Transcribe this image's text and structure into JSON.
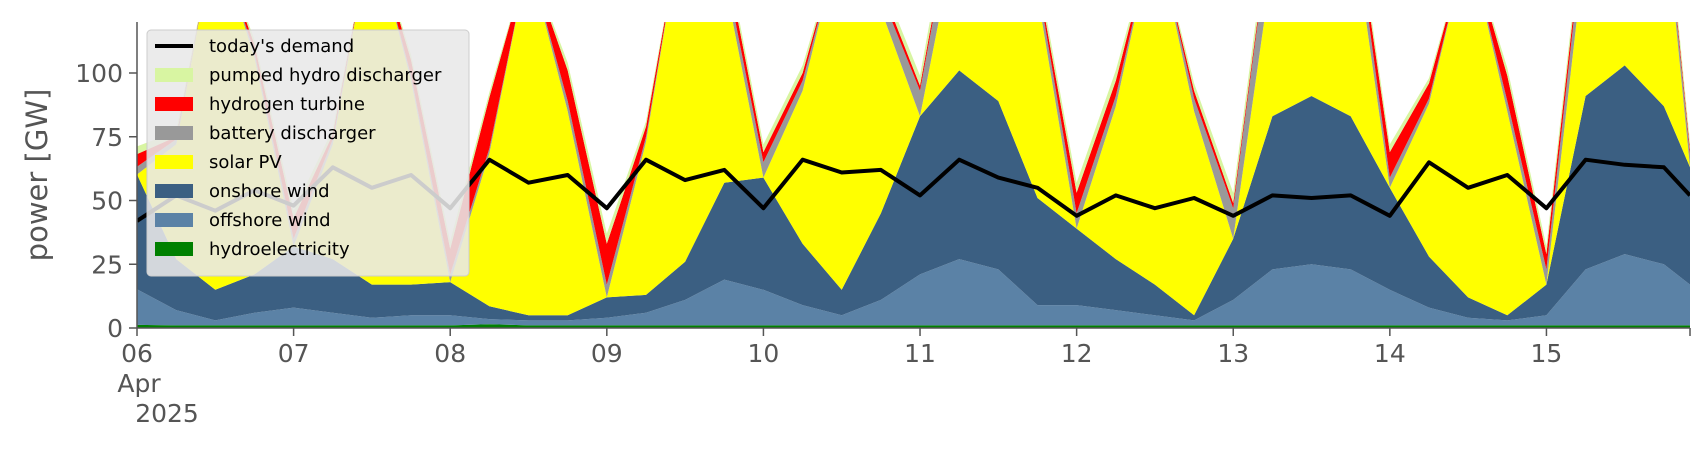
{
  "chart_data": {
    "type": "area",
    "ylabel": "power [GW]",
    "xlim": [
      "2025-04-06T00:00",
      "2025-04-15T22:00"
    ],
    "ylim": [
      0,
      120
    ],
    "yticks": [
      0,
      25,
      50,
      75,
      100
    ],
    "xticks": [
      {
        "label": "06",
        "sublabel": "Apr",
        "sublabel2": "2025"
      },
      {
        "label": "07"
      },
      {
        "label": "08"
      },
      {
        "label": "09"
      },
      {
        "label": "10"
      },
      {
        "label": "11"
      },
      {
        "label": "12"
      },
      {
        "label": "13"
      },
      {
        "label": "14"
      },
      {
        "label": "15"
      }
    ],
    "grid": false,
    "legend_position": "top-left",
    "x": [
      "2025-04-06T00:00",
      "2025-04-06T06:00",
      "2025-04-06T12:00",
      "2025-04-06T18:00",
      "2025-04-07T00:00",
      "2025-04-07T06:00",
      "2025-04-07T12:00",
      "2025-04-07T18:00",
      "2025-04-08T00:00",
      "2025-04-08T06:00",
      "2025-04-08T12:00",
      "2025-04-08T18:00",
      "2025-04-09T00:00",
      "2025-04-09T06:00",
      "2025-04-09T12:00",
      "2025-04-09T18:00",
      "2025-04-10T00:00",
      "2025-04-10T06:00",
      "2025-04-10T12:00",
      "2025-04-10T18:00",
      "2025-04-11T00:00",
      "2025-04-11T06:00",
      "2025-04-11T12:00",
      "2025-04-11T18:00",
      "2025-04-12T00:00",
      "2025-04-12T06:00",
      "2025-04-12T12:00",
      "2025-04-12T18:00",
      "2025-04-13T00:00",
      "2025-04-13T06:00",
      "2025-04-13T12:00",
      "2025-04-13T18:00",
      "2025-04-14T00:00",
      "2025-04-14T06:00",
      "2025-04-14T12:00",
      "2025-04-14T18:00",
      "2025-04-15T00:00",
      "2025-04-15T06:00",
      "2025-04-15T12:00",
      "2025-04-15T18:00",
      "2025-04-15T22:00"
    ],
    "series": [
      {
        "name": "hydroelectricity",
        "color": "#008000",
        "kind": "area",
        "values": [
          1.2,
          1.0,
          1.0,
          1.0,
          1.0,
          1.0,
          1.0,
          1.0,
          1.0,
          1.5,
          1.0,
          1.0,
          1.0,
          1.0,
          1.0,
          1.0,
          1.0,
          1.0,
          1.0,
          1.0,
          1.0,
          1.0,
          1.0,
          1.0,
          1.0,
          1.0,
          1.0,
          1.0,
          1.0,
          1.0,
          1.0,
          1.0,
          1.0,
          1.0,
          1.0,
          1.0,
          1.0,
          1.0,
          1.0,
          1.0,
          1.0
        ]
      },
      {
        "name": "offshore wind",
        "color": "#5b82a6",
        "kind": "area",
        "values": [
          14,
          6,
          2,
          5,
          7,
          5,
          3,
          4,
          4,
          2,
          2,
          2,
          3,
          5,
          10,
          18,
          14,
          8,
          4,
          10,
          20,
          26,
          22,
          8,
          8,
          6,
          4,
          2,
          10,
          22,
          24,
          22,
          14,
          7,
          3,
          2,
          4,
          22,
          28,
          24,
          16
        ]
      },
      {
        "name": "onshore wind",
        "color": "#3b5f82",
        "kind": "area",
        "values": [
          45,
          20,
          12,
          15,
          24,
          21,
          13,
          12,
          13,
          5,
          2,
          2,
          8,
          7,
          15,
          38,
          44,
          24,
          10,
          34,
          62,
          74,
          66,
          42,
          30,
          20,
          12,
          2,
          24,
          60,
          66,
          60,
          40,
          20,
          8,
          2,
          12,
          68,
          74,
          62,
          46
        ]
      },
      {
        "name": "solar PV",
        "color": "#ffff00",
        "kind": "area",
        "values": [
          0,
          45,
          140,
          85,
          0,
          45,
          140,
          80,
          0,
          60,
          140,
          80,
          0,
          60,
          140,
          80,
          0,
          60,
          140,
          80,
          0,
          60,
          140,
          80,
          0,
          60,
          140,
          80,
          0,
          60,
          140,
          80,
          0,
          60,
          140,
          80,
          0,
          60,
          140,
          80,
          0
        ]
      },
      {
        "name": "battery discharger",
        "color": "#999999",
        "kind": "area",
        "values": [
          3,
          2,
          0,
          2,
          3,
          2,
          0,
          2,
          3,
          2,
          0,
          4,
          5,
          2,
          0,
          5,
          6,
          4,
          0,
          6,
          10,
          15,
          8,
          5,
          6,
          4,
          0,
          5,
          12,
          20,
          15,
          10,
          4,
          2,
          0,
          4,
          6,
          12,
          6,
          6,
          5
        ]
      },
      {
        "name": "hydrogen turbine",
        "color": "#ff0000",
        "kind": "area",
        "values": [
          5,
          1,
          0,
          3,
          8,
          2,
          0,
          6,
          10,
          20,
          0,
          12,
          16,
          4,
          0,
          6,
          4,
          3,
          0,
          3,
          2,
          3,
          0,
          2,
          8,
          6,
          0,
          3,
          2,
          2,
          0,
          2,
          10,
          6,
          0,
          10,
          6,
          3,
          0,
          2,
          2
        ]
      },
      {
        "name": "pumped hydro discharger",
        "color": "#d8f5a2",
        "kind": "area",
        "values": [
          3,
          2,
          0,
          2,
          3,
          2,
          0,
          2,
          3,
          2,
          0,
          3,
          4,
          2,
          0,
          3,
          3,
          3,
          0,
          3,
          4,
          5,
          3,
          3,
          4,
          4,
          0,
          3,
          4,
          5,
          4,
          3,
          3,
          2,
          0,
          3,
          3,
          4,
          3,
          3,
          3
        ]
      },
      {
        "name": "today's demand",
        "color": "#000000",
        "kind": "line",
        "values": [
          42,
          52,
          46,
          54,
          48,
          63,
          55,
          60,
          47,
          66,
          57,
          60,
          47,
          66,
          58,
          62,
          47,
          66,
          61,
          62,
          52,
          66,
          59,
          55,
          44,
          52,
          47,
          51,
          44,
          52,
          51,
          52,
          44,
          65,
          55,
          60,
          47,
          66,
          64,
          63,
          52
        ]
      }
    ]
  }
}
